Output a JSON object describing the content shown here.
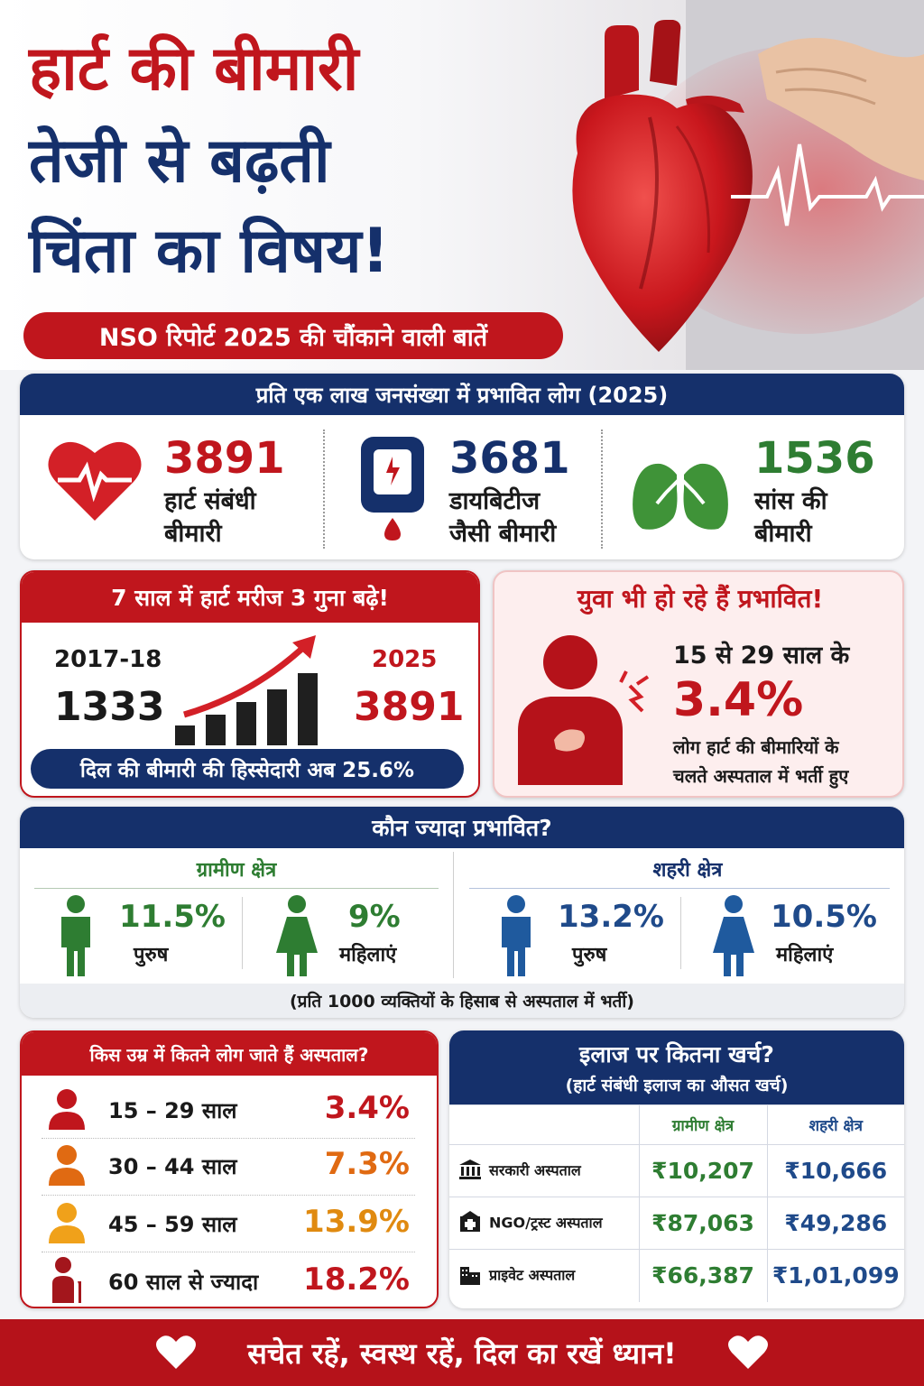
{
  "header": {
    "title_line1": "हार्ट की बीमारी",
    "title_line2": "तेजी से बढ़ती",
    "title_line3": "चिंता का विषय!",
    "subtitle": "NSO रिपोर्ट 2025 की चौंकाने वाली बातें"
  },
  "affected": {
    "heading": "प्रति एक लाख जनसंख्या में प्रभावित लोग (2025)",
    "items": [
      {
        "value": "3891",
        "label1": "हार्ट संबंधी",
        "label2": "बीमारी",
        "icon": "heart-pulse-icon",
        "color": "#c0161d"
      },
      {
        "value": "3681",
        "label1": "डायबिटीज",
        "label2": "जैसी बीमारी",
        "icon": "glucose-meter-icon",
        "color": "#15306b"
      },
      {
        "value": "1536",
        "label1": "सांस की",
        "label2": "बीमारी",
        "icon": "lungs-icon",
        "color": "#2e7d32"
      }
    ]
  },
  "growth": {
    "heading": "7 साल में हार्ट मरीज 3 गुना बढ़े!",
    "start_year": "2017-18",
    "start_value": "1333",
    "end_year": "2025",
    "end_value": "3891",
    "share_note": "दिल की बीमारी की हिस्सेदारी अब 25.6%"
  },
  "youth": {
    "heading": "युवा भी हो रहे हैं प्रभावित!",
    "age_range": "15 से 29 साल के",
    "percent": "3.4%",
    "desc1": "लोग हार्ट की बीमारियों के",
    "desc2": "चलते अस्पताल में भर्ती हुए"
  },
  "who": {
    "heading": "कौन ज्यादा प्रभावित?",
    "rural_label": "ग्रामीण क्षेत्र",
    "urban_label": "शहरी क्षेत्र",
    "rural_male_pct": "11.5%",
    "rural_female_pct": "9%",
    "urban_male_pct": "13.2%",
    "urban_female_pct": "10.5%",
    "male_label": "पुरुष",
    "female_label": "महिलाएं",
    "footnote": "(प्रति 1000 व्यक्तियों के हिसाब से अस्पताल में भर्ती)"
  },
  "age": {
    "heading": "किस उम्र में कितने लोग जाते हैं अस्पताल?",
    "rows": [
      {
        "label": "15 – 29 साल",
        "value": "3.4%",
        "color": "#c0161d"
      },
      {
        "label": "30 – 44 साल",
        "value": "7.3%",
        "color": "#e06a12"
      },
      {
        "label": "45 – 59 साल",
        "value": "13.9%",
        "color": "#e08a10"
      },
      {
        "label": "60 साल से ज्यादा",
        "value": "18.2%",
        "color": "#c0161d"
      }
    ]
  },
  "cost": {
    "heading": "इलाज पर कितना खर्च?",
    "subheading": "(हार्ट संबंधी इलाज का औसत खर्च)",
    "col_rural": "ग्रामीण क्षेत्र",
    "col_urban": "शहरी क्षेत्र",
    "rows": [
      {
        "label": "सरकारी अस्पताल",
        "rural": "₹10,207",
        "urban": "₹10,666",
        "icon": "government-building-icon"
      },
      {
        "label": "NGO/ट्रस्ट अस्पताल",
        "rural": "₹87,063",
        "urban": "₹49,286",
        "icon": "hospital-icon"
      },
      {
        "label": "प्राइवेट अस्पताल",
        "rural": "₹66,387",
        "urban": "₹1,01,099",
        "icon": "private-building-icon"
      }
    ]
  },
  "footer": {
    "slogan": "सचेत रहें, स्वस्थ रहें, दिल का रखें ध्यान!"
  }
}
